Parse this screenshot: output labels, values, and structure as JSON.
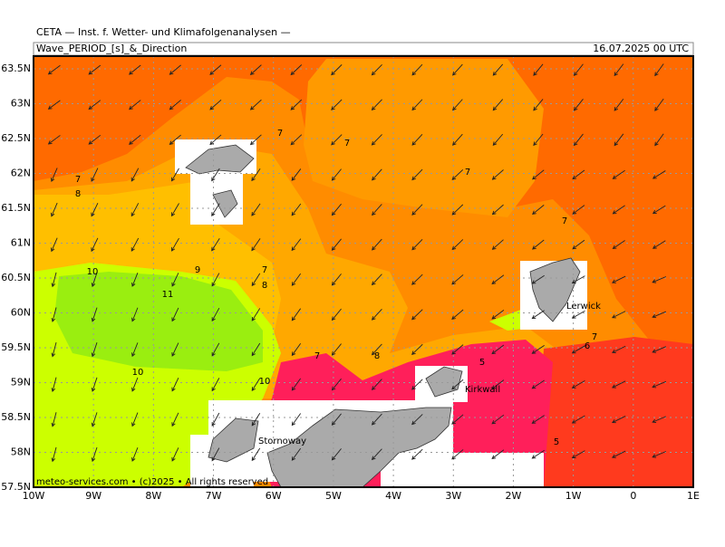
{
  "header": {
    "institute": "CETA — Inst. f. Wetter- und Klimafolgenanalysen —",
    "title": "Wave_PERIOD_[s]_&_Direction",
    "date": "16.07.2025 00 UTC"
  },
  "lat_labels": [
    "63.5N",
    "63N",
    "62.5N",
    "62N",
    "61.5N",
    "61N",
    "60.5N",
    "60N",
    "59.5N",
    "59N",
    "58.5N",
    "58N",
    "57.5N"
  ],
  "lon_labels": [
    "10W",
    "9W",
    "8W",
    "7W",
    "6W",
    "5W",
    "4W",
    "3W",
    "2W",
    "1W",
    "0",
    "1E"
  ],
  "contour_labels": [
    7,
    7,
    7,
    7,
    8,
    7,
    10,
    9,
    11,
    7,
    8,
    10,
    7,
    8,
    10,
    5,
    7,
    6,
    5
  ],
  "places": [
    "Lerwick",
    "Kirkwall",
    "Stornoway"
  ],
  "credit": "meteo-services.com • (c)2025 • All rights reserved"
}
